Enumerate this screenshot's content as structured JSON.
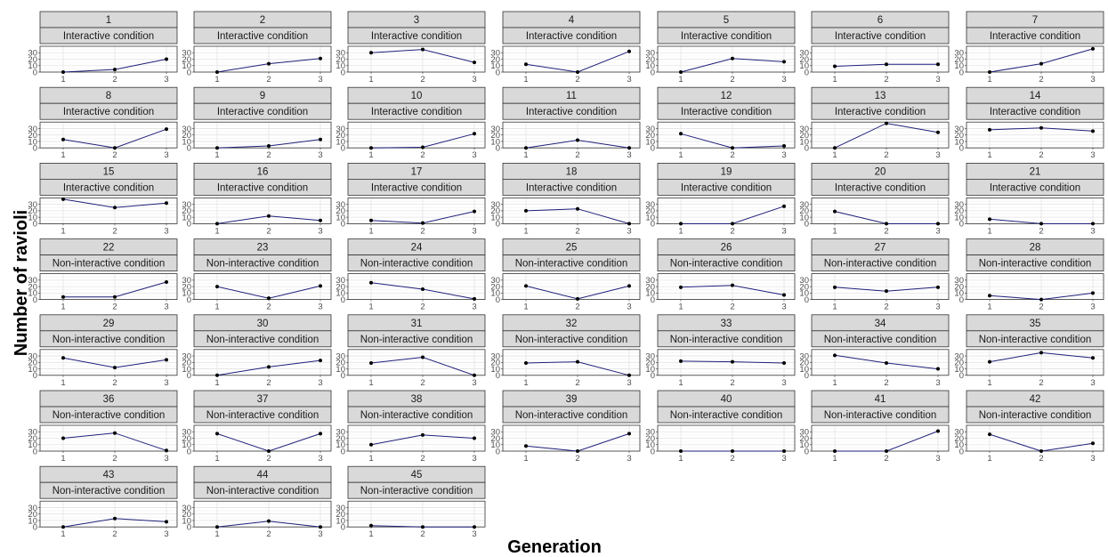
{
  "chart_data": {
    "type": "line",
    "xlabel": "Generation",
    "ylabel": "Number of ravioli",
    "x": [
      1,
      2,
      3
    ],
    "x_ticks": [
      "1",
      "2",
      "3"
    ],
    "y_ticks": [
      "0",
      "10",
      "20",
      "30"
    ],
    "ylim": [
      0,
      40
    ],
    "grid": true,
    "line_color": "#1f1f7a",
    "point_color": "#000000",
    "strip_fill": "#d9d9d9",
    "panels": [
      {
        "id": "1",
        "condition": "Interactive condition",
        "values": [
          0,
          4,
          20
        ]
      },
      {
        "id": "2",
        "condition": "Interactive condition",
        "values": [
          0,
          13,
          21
        ]
      },
      {
        "id": "3",
        "condition": "Interactive condition",
        "values": [
          30,
          35,
          15
        ]
      },
      {
        "id": "4",
        "condition": "Interactive condition",
        "values": [
          12,
          0,
          32
        ]
      },
      {
        "id": "5",
        "condition": "Interactive condition",
        "values": [
          0,
          21,
          16
        ]
      },
      {
        "id": "6",
        "condition": "Interactive condition",
        "values": [
          9,
          12,
          12
        ]
      },
      {
        "id": "7",
        "condition": "Interactive condition",
        "values": [
          0,
          13,
          36
        ]
      },
      {
        "id": "8",
        "condition": "Interactive condition",
        "values": [
          13,
          0,
          29
        ]
      },
      {
        "id": "9",
        "condition": "Interactive condition",
        "values": [
          0,
          3,
          13
        ]
      },
      {
        "id": "10",
        "condition": "Interactive condition",
        "values": [
          0,
          1,
          22
        ]
      },
      {
        "id": "11",
        "condition": "Interactive condition",
        "values": [
          0,
          12,
          0
        ]
      },
      {
        "id": "12",
        "condition": "Interactive condition",
        "values": [
          22,
          0,
          3
        ]
      },
      {
        "id": "13",
        "condition": "Interactive condition",
        "values": [
          0,
          38,
          24
        ]
      },
      {
        "id": "14",
        "condition": "Interactive condition",
        "values": [
          28,
          31,
          26
        ]
      },
      {
        "id": "15",
        "condition": "Interactive condition",
        "values": [
          38,
          25,
          32
        ]
      },
      {
        "id": "16",
        "condition": "Interactive condition",
        "values": [
          0,
          12,
          5
        ]
      },
      {
        "id": "17",
        "condition": "Interactive condition",
        "values": [
          5,
          1,
          19
        ]
      },
      {
        "id": "18",
        "condition": "Interactive condition",
        "values": [
          20,
          23,
          0
        ]
      },
      {
        "id": "19",
        "condition": "Interactive condition",
        "values": [
          0,
          0,
          27
        ]
      },
      {
        "id": "20",
        "condition": "Interactive condition",
        "values": [
          19,
          0,
          0
        ]
      },
      {
        "id": "21",
        "condition": "Interactive condition",
        "values": [
          7,
          0,
          0
        ]
      },
      {
        "id": "22",
        "condition": "Non-interactive condition",
        "values": [
          4,
          4,
          27
        ]
      },
      {
        "id": "23",
        "condition": "Non-interactive condition",
        "values": [
          20,
          2,
          21
        ]
      },
      {
        "id": "24",
        "condition": "Non-interactive condition",
        "values": [
          26,
          16,
          1
        ]
      },
      {
        "id": "25",
        "condition": "Non-interactive condition",
        "values": [
          21,
          1,
          21
        ]
      },
      {
        "id": "26",
        "condition": "Non-interactive condition",
        "values": [
          19,
          22,
          7
        ]
      },
      {
        "id": "27",
        "condition": "Non-interactive condition",
        "values": [
          19,
          13,
          19
        ]
      },
      {
        "id": "28",
        "condition": "Non-interactive condition",
        "values": [
          6,
          0,
          10
        ]
      },
      {
        "id": "29",
        "condition": "Non-interactive condition",
        "values": [
          27,
          12,
          24
        ]
      },
      {
        "id": "30",
        "condition": "Non-interactive condition",
        "values": [
          0,
          13,
          23
        ]
      },
      {
        "id": "31",
        "condition": "Non-interactive condition",
        "values": [
          19,
          28,
          0
        ]
      },
      {
        "id": "32",
        "condition": "Non-interactive condition",
        "values": [
          19,
          21,
          0
        ]
      },
      {
        "id": "33",
        "condition": "Non-interactive condition",
        "values": [
          22,
          21,
          19
        ]
      },
      {
        "id": "34",
        "condition": "Non-interactive condition",
        "values": [
          31,
          19,
          10
        ]
      },
      {
        "id": "35",
        "condition": "Non-interactive condition",
        "values": [
          21,
          35,
          27
        ]
      },
      {
        "id": "36",
        "condition": "Non-interactive condition",
        "values": [
          20,
          28,
          1
        ]
      },
      {
        "id": "37",
        "condition": "Non-interactive condition",
        "values": [
          27,
          0,
          27
        ]
      },
      {
        "id": "38",
        "condition": "Non-interactive condition",
        "values": [
          10,
          25,
          20
        ]
      },
      {
        "id": "39",
        "condition": "Non-interactive condition",
        "values": [
          8,
          0,
          27
        ]
      },
      {
        "id": "40",
        "condition": "Non-interactive condition",
        "values": [
          0,
          0,
          0
        ]
      },
      {
        "id": "41",
        "condition": "Non-interactive condition",
        "values": [
          0,
          0,
          31
        ]
      },
      {
        "id": "42",
        "condition": "Non-interactive condition",
        "values": [
          26,
          0,
          12
        ]
      },
      {
        "id": "43",
        "condition": "Non-interactive condition",
        "values": [
          0,
          13,
          8
        ]
      },
      {
        "id": "44",
        "condition": "Non-interactive condition",
        "values": [
          0,
          9,
          0
        ]
      },
      {
        "id": "45",
        "condition": "Non-interactive condition",
        "values": [
          2,
          0,
          0
        ]
      }
    ]
  }
}
